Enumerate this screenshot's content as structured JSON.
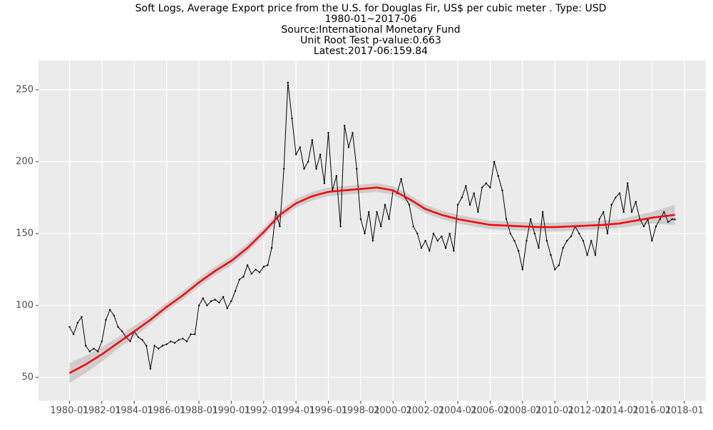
{
  "chart_data": {
    "type": "line",
    "title": "Soft Logs, Average Export price from the U.S. for Douglas Fir, US$ per cubic meter . Type: USD",
    "subtitle": [
      "1980-01~2017-06",
      "Source:International Monetary Fund",
      "Unit Root Test p-value:0.663",
      "Latest:2017-06:159.84"
    ],
    "x": [
      "1980-01",
      "1980-04",
      "1980-07",
      "1980-10",
      "1981-01",
      "1981-04",
      "1981-07",
      "1981-10",
      "1982-01",
      "1982-04",
      "1982-07",
      "1982-10",
      "1983-01",
      "1983-04",
      "1983-07",
      "1983-10",
      "1984-01",
      "1984-04",
      "1984-07",
      "1984-10",
      "1985-01",
      "1985-04",
      "1985-07",
      "1985-10",
      "1986-01",
      "1986-04",
      "1986-07",
      "1986-10",
      "1987-01",
      "1987-04",
      "1987-07",
      "1987-10",
      "1988-01",
      "1988-04",
      "1988-07",
      "1988-10",
      "1989-01",
      "1989-04",
      "1989-07",
      "1989-10",
      "1990-01",
      "1990-04",
      "1990-07",
      "1990-10",
      "1991-01",
      "1991-04",
      "1991-07",
      "1991-10",
      "1992-01",
      "1992-04",
      "1992-07",
      "1992-10",
      "1993-01",
      "1993-04",
      "1993-07",
      "1993-10",
      "1994-01",
      "1994-04",
      "1994-07",
      "1994-10",
      "1995-01",
      "1995-04",
      "1995-07",
      "1995-10",
      "1996-01",
      "1996-04",
      "1996-07",
      "1996-10",
      "1997-01",
      "1997-04",
      "1997-07",
      "1997-10",
      "1998-01",
      "1998-04",
      "1998-07",
      "1998-10",
      "1999-01",
      "1999-04",
      "1999-07",
      "1999-10",
      "2000-01",
      "2000-04",
      "2000-07",
      "2000-10",
      "2001-01",
      "2001-04",
      "2001-07",
      "2001-10",
      "2002-01",
      "2002-04",
      "2002-07",
      "2002-10",
      "2003-01",
      "2003-04",
      "2003-07",
      "2003-10",
      "2004-01",
      "2004-04",
      "2004-07",
      "2004-10",
      "2005-01",
      "2005-04",
      "2005-07",
      "2005-10",
      "2006-01",
      "2006-04",
      "2006-07",
      "2006-10",
      "2007-01",
      "2007-04",
      "2007-07",
      "2007-10",
      "2008-01",
      "2008-04",
      "2008-07",
      "2008-10",
      "2009-01",
      "2009-04",
      "2009-07",
      "2009-10",
      "2010-01",
      "2010-04",
      "2010-07",
      "2010-10",
      "2011-01",
      "2011-04",
      "2011-07",
      "2011-10",
      "2012-01",
      "2012-04",
      "2012-07",
      "2012-10",
      "2013-01",
      "2013-04",
      "2013-07",
      "2013-10",
      "2014-01",
      "2014-04",
      "2014-07",
      "2014-10",
      "2015-01",
      "2015-04",
      "2015-07",
      "2015-10",
      "2016-01",
      "2016-04",
      "2016-07",
      "2016-10",
      "2017-01",
      "2017-04",
      "2017-06"
    ],
    "series": [
      {
        "color": "#000000",
        "values": [
          85,
          80,
          88,
          92,
          72,
          68,
          70,
          68,
          75,
          90,
          97,
          93,
          85,
          82,
          78,
          75,
          82,
          78,
          76,
          72,
          56,
          72,
          70,
          72,
          73,
          75,
          74,
          76,
          77,
          75,
          80,
          80,
          100,
          105,
          100,
          103,
          104,
          102,
          106,
          98,
          103,
          110,
          118,
          120,
          128,
          122,
          125,
          123,
          127,
          128,
          140,
          165,
          155,
          195,
          255,
          230,
          205,
          210,
          195,
          200,
          215,
          195,
          205,
          185,
          220,
          180,
          190,
          155,
          225,
          210,
          220,
          195,
          160,
          150,
          165,
          145,
          165,
          155,
          170,
          160,
          180,
          178,
          188,
          175,
          170,
          155,
          150,
          140,
          145,
          138,
          150,
          145,
          148,
          140,
          150,
          138,
          170,
          175,
          183,
          170,
          178,
          165,
          182,
          185,
          182,
          200,
          190,
          180,
          160,
          150,
          145,
          138,
          125,
          145,
          160,
          150,
          140,
          165,
          145,
          135,
          125,
          128,
          140,
          145,
          148,
          155,
          150,
          145,
          135,
          145,
          135,
          160,
          165,
          150,
          170,
          175,
          178,
          165,
          185,
          165,
          172,
          160,
          155,
          160,
          145,
          155,
          160,
          165,
          158,
          160,
          159.84
        ]
      }
    ],
    "smooth": {
      "color": "#ff0000",
      "band_color": "#c8c8c8",
      "x": [
        "1980-01",
        "1981-01",
        "1982-01",
        "1983-01",
        "1984-01",
        "1985-01",
        "1986-01",
        "1987-01",
        "1988-01",
        "1989-01",
        "1990-01",
        "1991-01",
        "1992-01",
        "1993-01",
        "1994-01",
        "1995-01",
        "1996-01",
        "1997-01",
        "1998-01",
        "1999-01",
        "2000-01",
        "2001-01",
        "2002-01",
        "2003-01",
        "2004-01",
        "2005-01",
        "2006-01",
        "2007-01",
        "2008-01",
        "2009-01",
        "2010-01",
        "2011-01",
        "2012-01",
        "2013-01",
        "2014-01",
        "2015-01",
        "2016-01",
        "2017-06"
      ],
      "values": [
        53,
        59,
        66,
        74,
        82,
        90,
        99,
        107,
        116,
        124,
        131,
        140,
        151,
        163,
        171,
        176,
        179,
        180,
        181,
        182,
        180,
        174,
        167,
        163,
        160,
        158,
        156,
        155.5,
        155,
        154.5,
        154.5,
        155,
        155.5,
        156,
        157,
        159,
        161,
        163
      ],
      "lower": [
        46,
        53,
        61,
        70,
        78,
        87,
        96,
        104,
        113,
        121,
        128,
        137,
        148,
        160,
        168,
        173,
        176,
        177,
        178,
        179,
        177,
        171,
        164,
        160,
        157,
        155,
        153,
        152.5,
        152,
        151.5,
        151.5,
        152,
        152.5,
        153,
        154,
        155.5,
        157,
        156
      ],
      "upper": [
        60,
        65,
        71,
        78,
        86,
        93,
        102,
        110,
        119,
        127,
        134,
        143,
        154,
        166,
        174,
        179,
        182,
        183,
        184,
        185,
        183,
        177,
        170,
        166,
        163,
        161,
        159,
        158.5,
        158,
        157.5,
        157.5,
        158,
        158.5,
        159,
        160,
        162.5,
        165,
        170
      ]
    },
    "xlim": [
      "1978-02",
      "2019-05"
    ],
    "xticks": [
      "1980-01",
      "1982-01",
      "1984-01",
      "1986-01",
      "1988-01",
      "1990-01",
      "1992-01",
      "1994-01",
      "1996-01",
      "1998-01",
      "2000-01",
      "2002-01",
      "2004-01",
      "2006-01",
      "2008-01",
      "2010-01",
      "2012-01",
      "2014-01",
      "2016-01",
      "2018-01"
    ],
    "ylim": [
      33.7,
      270.3
    ],
    "yticks": [
      50,
      100,
      150,
      200,
      250
    ],
    "grid": true
  }
}
